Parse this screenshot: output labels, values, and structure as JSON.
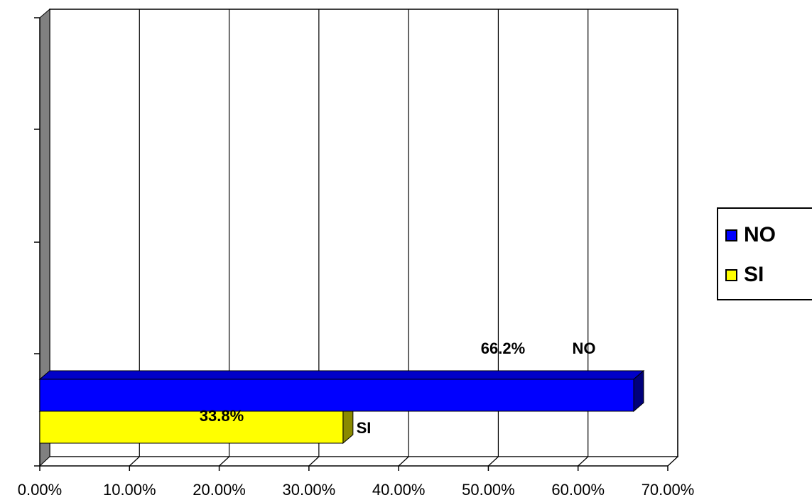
{
  "chart_data": {
    "type": "bar",
    "orientation": "horizontal",
    "three_d": true,
    "categories": [
      "NO",
      "SI"
    ],
    "series": [
      {
        "name": "NO",
        "value": 0.662,
        "label": "66.2%",
        "category_label": "NO",
        "color": "#0000ff",
        "side_color": "#00007a",
        "top_color": "#0000c8"
      },
      {
        "name": "SI",
        "value": 0.338,
        "label": "33.8%",
        "category_label": "SI",
        "color": "#ffff00",
        "side_color": "#8a8a00",
        "top_color": "#d6d600"
      }
    ],
    "xlim": [
      0,
      0.7
    ],
    "xticks": [
      {
        "value": 0.0,
        "label": "0.00%"
      },
      {
        "value": 0.1,
        "label": "10.00%"
      },
      {
        "value": 0.2,
        "label": "20.00%"
      },
      {
        "value": 0.3,
        "label": "30.00%"
      },
      {
        "value": 0.4,
        "label": "40.00%"
      },
      {
        "value": 0.5,
        "label": "50.00%"
      },
      {
        "value": 0.6,
        "label": "60.00%"
      },
      {
        "value": 0.7,
        "label": "70.00%"
      }
    ],
    "grid": true,
    "legend_position": "right",
    "title": "",
    "xlabel": "",
    "ylabel": ""
  },
  "legend": {
    "items": [
      {
        "label": "NO",
        "color": "#0000ff"
      },
      {
        "label": "SI",
        "color": "#ffff00"
      }
    ]
  }
}
